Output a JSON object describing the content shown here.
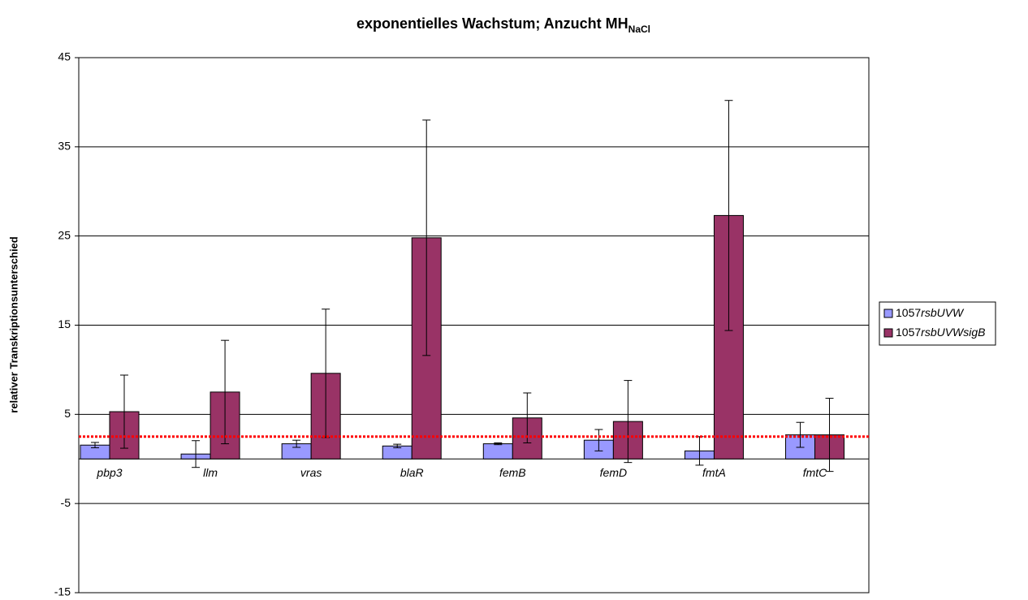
{
  "chart_data": {
    "type": "bar",
    "title": "exponentielles Wachstum; Anzucht MH",
    "title_subscript": "NaCl",
    "y_label": "relativer Transkriptionsunterschied",
    "categories": [
      "pbp3",
      "llm",
      "vras",
      "blaR",
      "femB",
      "femD",
      "fmtA",
      "fmtC"
    ],
    "series": [
      {
        "name": "1057rsbUVW",
        "color": "#9999ff",
        "values": [
          1.55,
          0.55,
          1.7,
          1.45,
          1.7,
          2.1,
          0.9,
          2.7
        ],
        "errors": [
          0.3,
          1.5,
          0.4,
          0.2,
          0.1,
          1.2,
          1.6,
          1.4
        ]
      },
      {
        "name": "1057rsbUVWsigB",
        "color": "#993366",
        "values": [
          5.3,
          7.5,
          9.6,
          24.8,
          4.6,
          4.2,
          27.3,
          2.7
        ],
        "errors": [
          4.1,
          5.8,
          7.2,
          13.2,
          2.8,
          4.6,
          12.9,
          4.1
        ]
      }
    ],
    "threshold": {
      "value": 2.5,
      "color": "#ff0000"
    },
    "ylim": [
      -15,
      45
    ],
    "yticks": [
      -15,
      -5,
      5,
      15,
      25,
      35,
      45
    ],
    "grid": true,
    "legend": "right"
  }
}
